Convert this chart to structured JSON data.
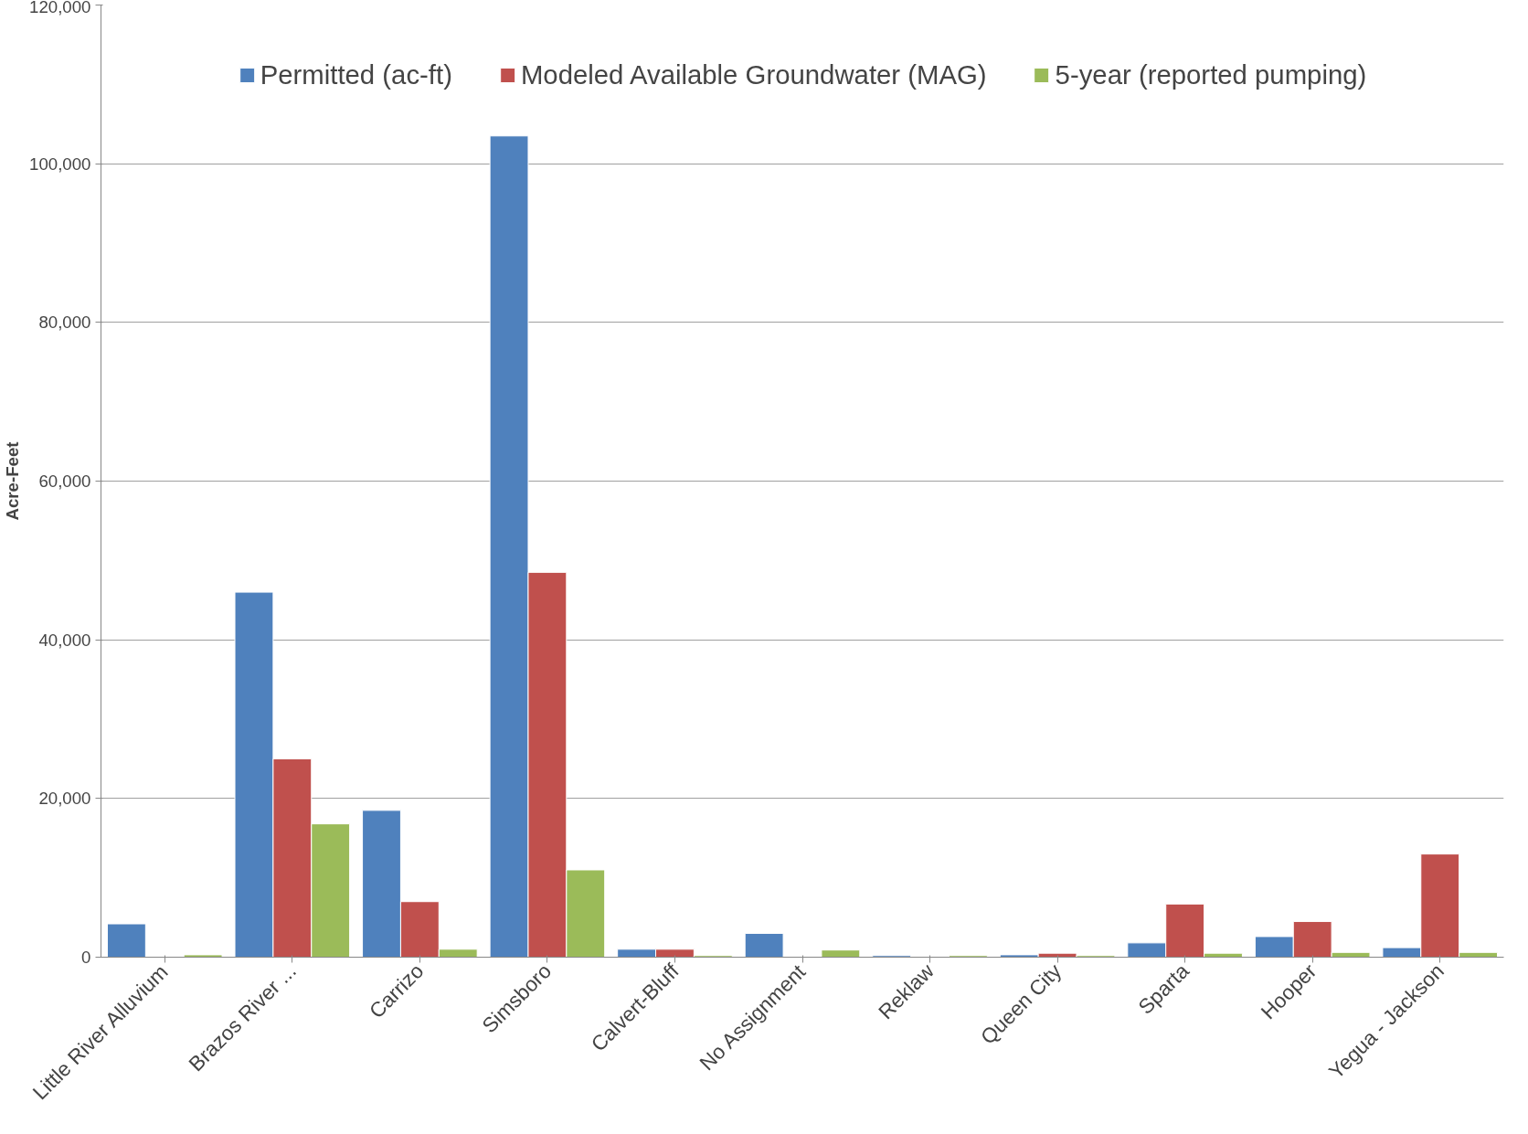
{
  "chart_data": {
    "type": "bar",
    "ylabel": "Acre-Feet",
    "categories": [
      "Little River Alluvium",
      "Brazos River ...",
      "Carrizo",
      "Simsboro",
      "Calvert-Bluff",
      "No Assignment",
      "Reklaw",
      "Queen City",
      "Sparta",
      "Hooper",
      "Yegua - Jackson"
    ],
    "series": [
      {
        "name": "Permitted (ac-ft)",
        "color": "#4f81bd",
        "values": [
          4200,
          46000,
          18500,
          103500,
          1000,
          3000,
          200,
          300,
          1800,
          2600,
          1200
        ]
      },
      {
        "name": "Modeled Available Groundwater (MAG)",
        "color": "#c0504d",
        "values": [
          null,
          25000,
          7000,
          48500,
          1000,
          null,
          null,
          500,
          6700,
          4500,
          13000
        ]
      },
      {
        "name": "5-year (reported pumping)",
        "color": "#9bbb59",
        "values": [
          300,
          16800,
          1000,
          11000,
          200,
          900,
          200,
          200,
          500,
          600,
          600
        ]
      }
    ],
    "ylim": [
      0,
      120000
    ],
    "yticks": [
      {
        "value": 0,
        "label": "0"
      },
      {
        "value": 20000,
        "label": "20,000"
      },
      {
        "value": 40000,
        "label": "40,000"
      },
      {
        "value": 60000,
        "label": "60,000"
      },
      {
        "value": 80000,
        "label": "80,000"
      },
      {
        "value": 100000,
        "label": "100,000"
      },
      {
        "value": 120000,
        "label": "120,000"
      }
    ],
    "grid": "y",
    "legend": "top"
  }
}
